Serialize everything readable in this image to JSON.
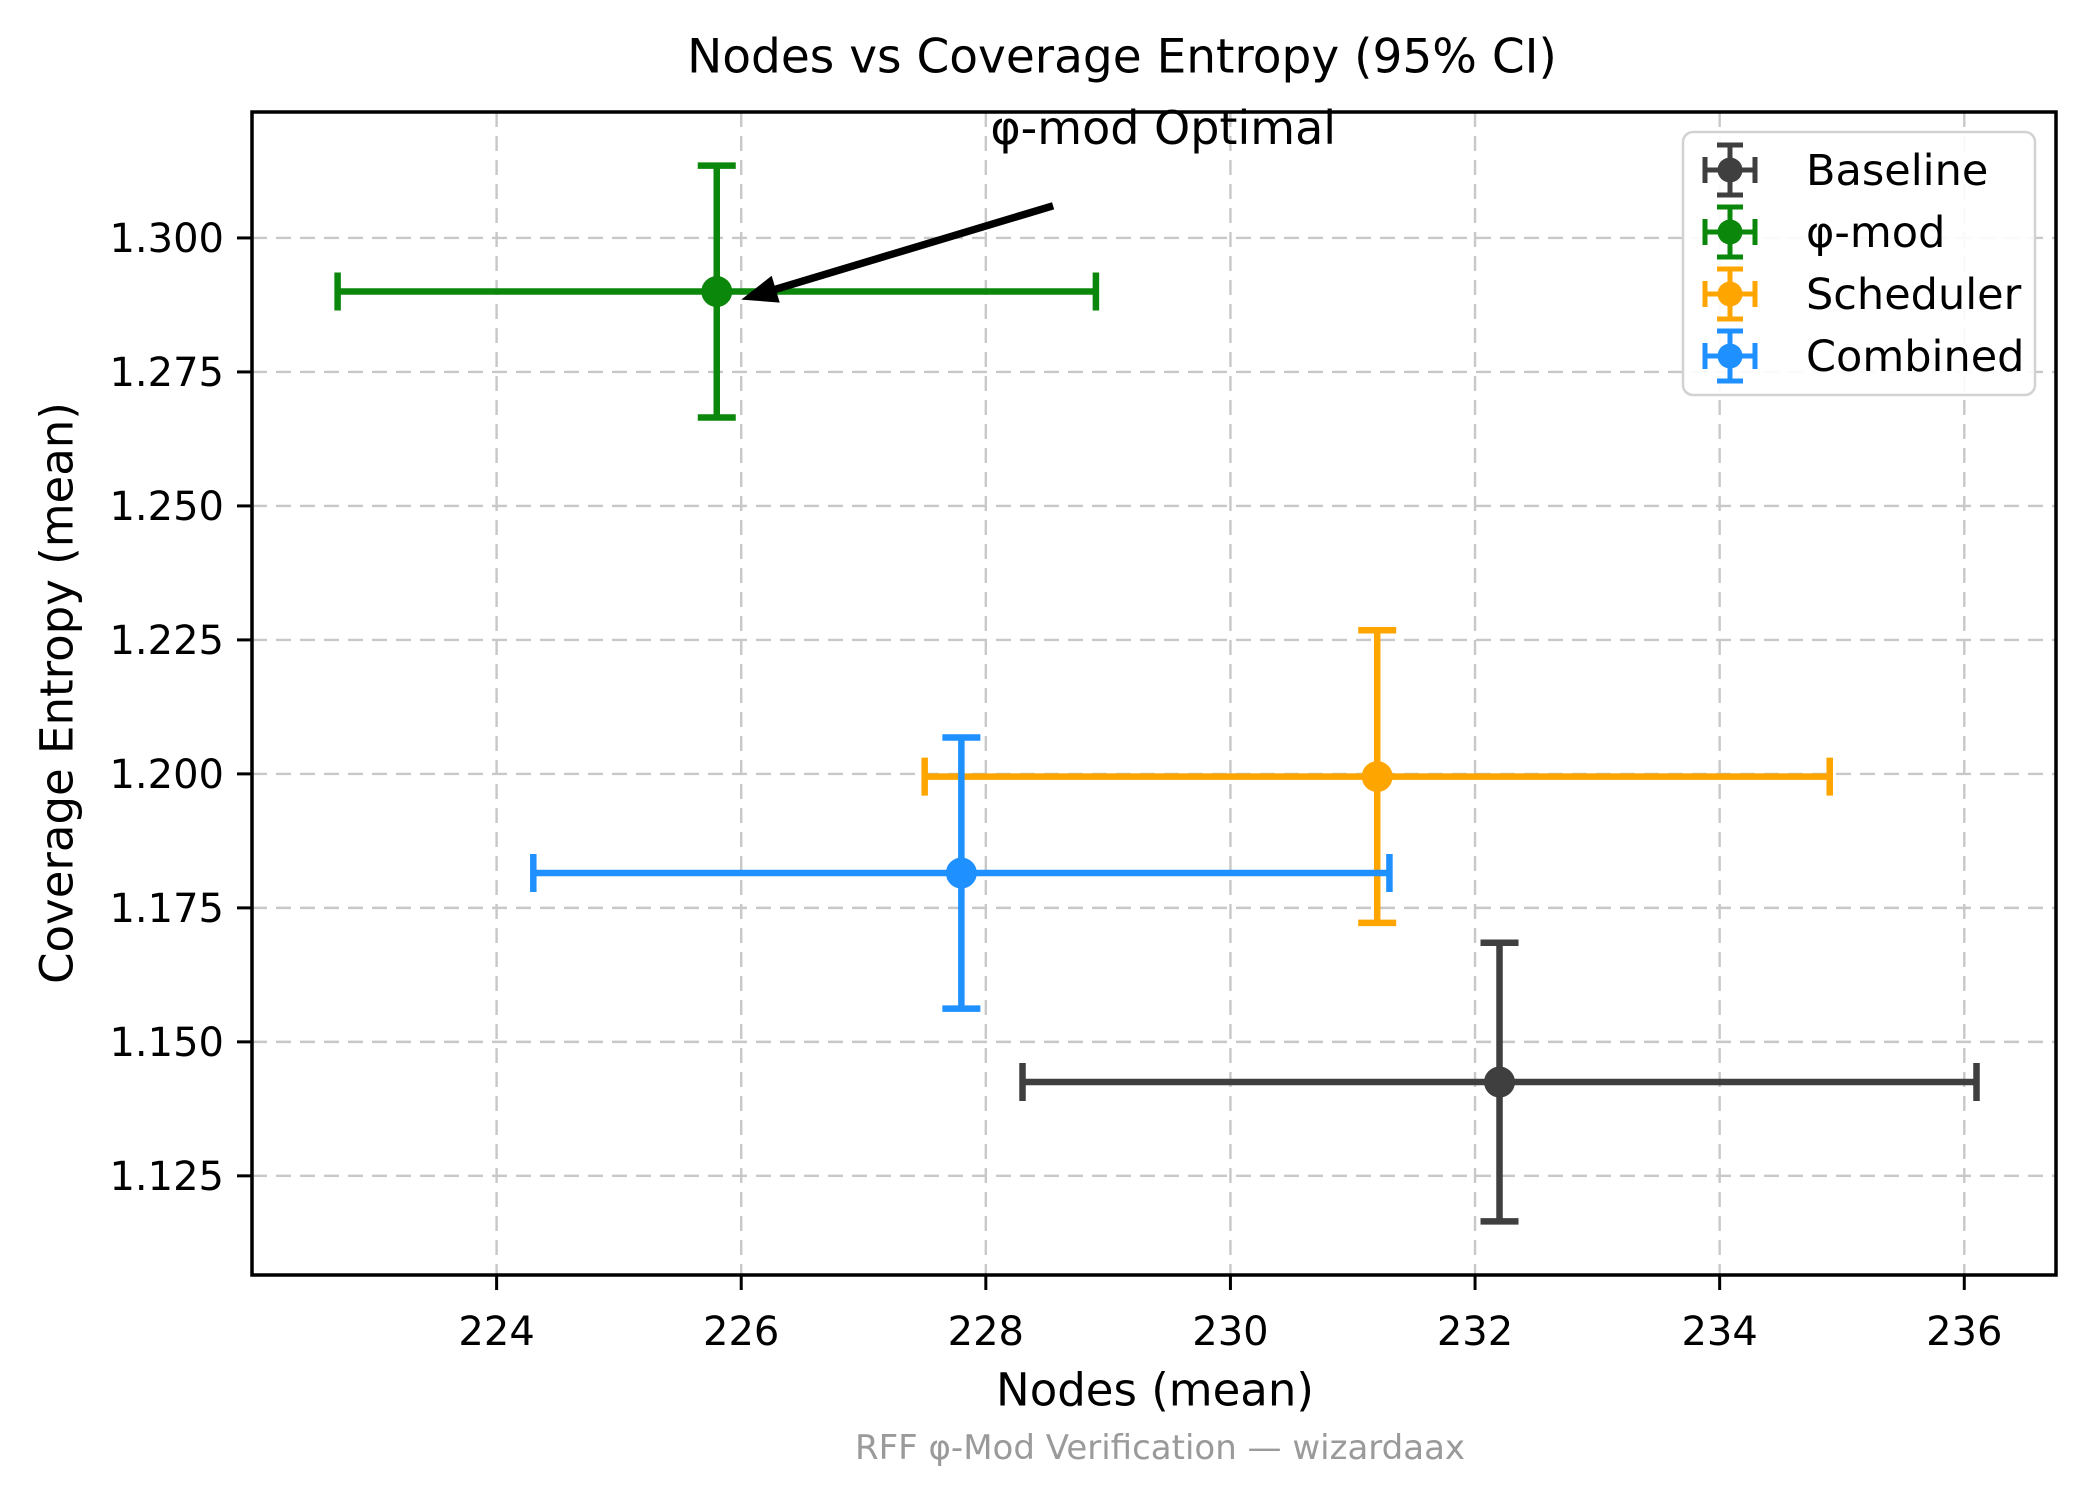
{
  "chart_data": {
    "type": "scatter",
    "title": "Nodes vs Coverage Entropy (95% CI)",
    "xlabel": "Nodes (mean)",
    "ylabel": "Coverage Entropy (mean)",
    "footer_caption": "RFF φ-Mod Verification — wizardaax",
    "xlim": [
      222.0,
      236.75
    ],
    "ylim": [
      1.1065,
      1.3235
    ],
    "xticks": [
      224,
      226,
      228,
      230,
      232,
      234,
      236
    ],
    "xtick_labels": [
      "224",
      "226",
      "228",
      "230",
      "232",
      "234",
      "236"
    ],
    "yticks": [
      1.125,
      1.15,
      1.175,
      1.2,
      1.225,
      1.25,
      1.275,
      1.3
    ],
    "ytick_labels": [
      "1.125",
      "1.150",
      "1.175",
      "1.200",
      "1.225",
      "1.250",
      "1.275",
      "1.300"
    ],
    "grid": true,
    "legend": {
      "position": "upper right",
      "entries": [
        "Baseline",
        "φ-mod",
        "Scheduler",
        "Combined"
      ]
    },
    "series": [
      {
        "name": "Baseline",
        "color": "#3F3F3F",
        "x": 232.2,
        "y": 1.1425,
        "xerr": 3.9,
        "yerr": 0.026
      },
      {
        "name": "φ-mod",
        "color": "#0B870B",
        "x": 225.8,
        "y": 1.29,
        "xerr": 3.1,
        "yerr": 0.0235
      },
      {
        "name": "Scheduler",
        "color": "#FFA500",
        "x": 231.2,
        "y": 1.1995,
        "xerr": 3.7,
        "yerr": 0.0273
      },
      {
        "name": "Combined",
        "color": "#1E90FF",
        "x": 227.8,
        "y": 1.1815,
        "xerr": 3.5,
        "yerr": 0.0253
      }
    ],
    "annotation": {
      "text": "φ-mod Optimal",
      "target": [
        225.8,
        1.29
      ],
      "text_center": [
        229.45,
        1.3205
      ],
      "arrow_from": [
        228.55,
        1.306
      ],
      "arrow_to": [
        226.0,
        1.2885
      ]
    },
    "style": {
      "background": "#ffffff",
      "grid_color": "#c8c8c8",
      "spine_color": "#000000",
      "tick_color": "#000000",
      "text_color": "#000000",
      "footer_color": "#9a9a9a",
      "legend_border": "#d2d2d2",
      "arrow_color": "#000000"
    }
  }
}
